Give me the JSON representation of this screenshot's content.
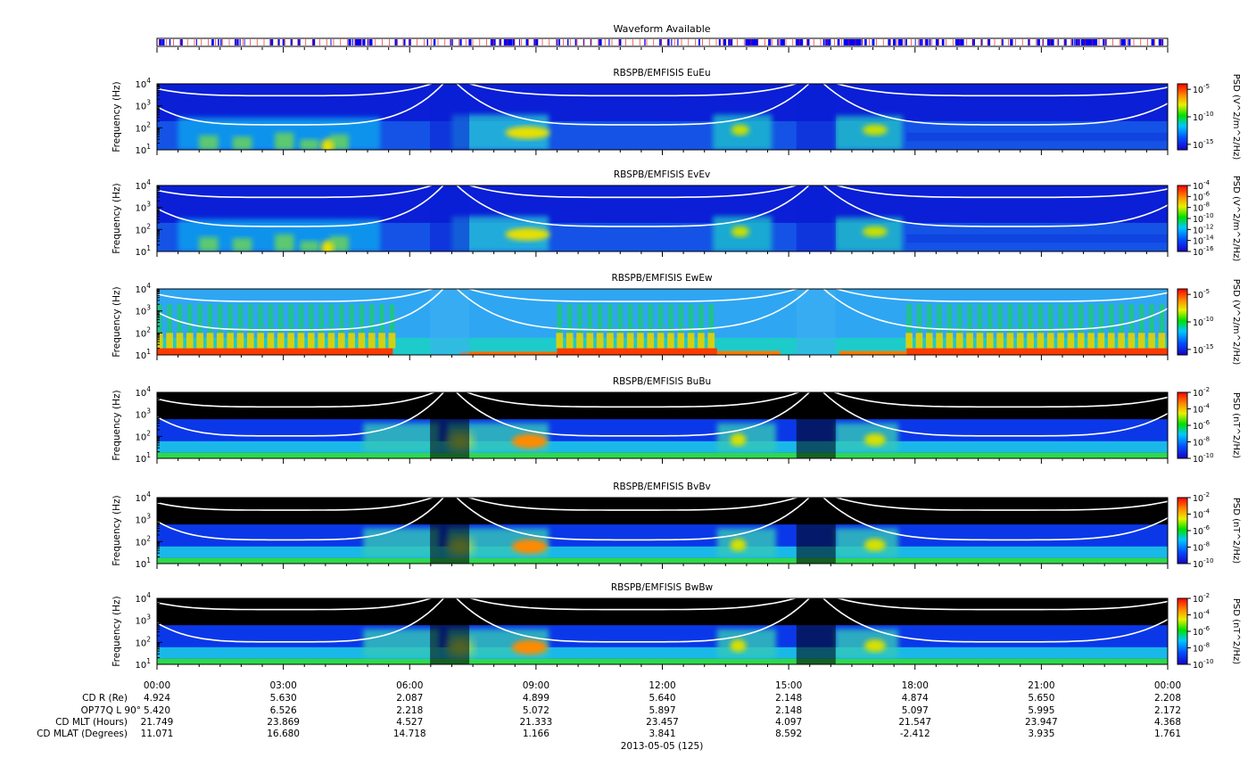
{
  "waveform": {
    "title": "Waveform Available",
    "fill_color": "#0000ff",
    "tick_color": "#ff0000"
  },
  "chart_data": [
    {
      "type": "heatmap",
      "title": "RBSPB/EMFISIS  EuEu",
      "ylabel": "Frequency (Hz)",
      "y_scale": "log",
      "ylim": [
        10,
        10000
      ],
      "y_ticks": [
        1,
        2,
        3,
        4
      ],
      "colorbar_label": "PSD (V^2/m^2/Hz)",
      "colorbar_scale": "log",
      "colorbar_range": [
        1e-16,
        0.0001
      ],
      "colorbar_ticks": [
        -5,
        -10,
        -15
      ],
      "colormap": "rainbow",
      "background": "#0a1fd6",
      "style": "E"
    },
    {
      "type": "heatmap",
      "title": "RBSPB/EMFISIS  EvEv",
      "ylabel": "Frequency (Hz)",
      "y_scale": "log",
      "ylim": [
        10,
        10000
      ],
      "y_ticks": [
        1,
        2,
        3,
        4
      ],
      "colorbar_label": "PSD (V^2/m^2/Hz)",
      "colorbar_scale": "log",
      "colorbar_range": [
        1e-16,
        0.0001
      ],
      "colorbar_ticks": [
        -4,
        -6,
        -8,
        -10,
        -12,
        -14,
        -16
      ],
      "colormap": "rainbow",
      "background": "#0a1fd6",
      "style": "E"
    },
    {
      "type": "heatmap",
      "title": "RBSPB/EMFISIS  EwEw",
      "ylabel": "Frequency (Hz)",
      "y_scale": "log",
      "ylim": [
        10,
        10000
      ],
      "y_ticks": [
        1,
        2,
        3,
        4
      ],
      "colorbar_label": "PSD (V^2/m^2/Hz)",
      "colorbar_scale": "log",
      "colorbar_range": [
        1e-16,
        0.0001
      ],
      "colorbar_ticks": [
        -5,
        -10,
        -15
      ],
      "colormap": "rainbow",
      "background": "#2fa6f2",
      "style": "Ew"
    },
    {
      "type": "heatmap",
      "title": "RBSPB/EMFISIS  BuBu",
      "ylabel": "Frequency (Hz)",
      "y_scale": "log",
      "ylim": [
        10,
        10000
      ],
      "y_ticks": [
        1,
        2,
        3,
        4
      ],
      "colorbar_label": "PSD (nT^2/Hz)",
      "colorbar_scale": "log",
      "colorbar_range": [
        1e-10,
        0.01
      ],
      "colorbar_ticks": [
        -2,
        -4,
        -6,
        -8,
        -10
      ],
      "colormap": "rainbow",
      "background": "#000000",
      "style": "B"
    },
    {
      "type": "heatmap",
      "title": "RBSPB/EMFISIS  BvBv",
      "ylabel": "Frequency (Hz)",
      "y_scale": "log",
      "ylim": [
        10,
        10000
      ],
      "y_ticks": [
        1,
        2,
        3,
        4
      ],
      "colorbar_label": "PSD (nT^2/Hz)",
      "colorbar_scale": "log",
      "colorbar_range": [
        1e-10,
        0.01
      ],
      "colorbar_ticks": [
        -2,
        -4,
        -6,
        -8,
        -10
      ],
      "colormap": "rainbow",
      "background": "#000000",
      "style": "B"
    },
    {
      "type": "heatmap",
      "title": "RBSPB/EMFISIS  BwBw",
      "ylabel": "Frequency (Hz)",
      "y_scale": "log",
      "ylim": [
        10,
        10000
      ],
      "y_ticks": [
        1,
        2,
        3,
        4
      ],
      "colorbar_label": "PSD (nT^2/Hz)",
      "colorbar_scale": "log",
      "colorbar_range": [
        1e-10,
        0.01
      ],
      "colorbar_ticks": [
        -2,
        -4,
        -6,
        -8,
        -10
      ],
      "colormap": "rainbow",
      "background": "#000000",
      "style": "B"
    }
  ],
  "time_axis": {
    "labels": [
      "00:00",
      "03:00",
      "06:00",
      "09:00",
      "12:00",
      "15:00",
      "18:00",
      "21:00",
      "00:00"
    ],
    "date_label": "2013-05-05 (125)"
  },
  "ephemeris": {
    "row_labels": [
      "CD R (Re)",
      "OP77Q L 90°",
      "CD MLT (Hours)",
      "CD MLAT (Degrees)"
    ],
    "columns": [
      [
        "4.924",
        "5.420",
        "21.749",
        "11.071"
      ],
      [
        "5.630",
        "6.526",
        "23.869",
        "16.680"
      ],
      [
        "2.087",
        "2.218",
        "4.527",
        "14.718"
      ],
      [
        "4.899",
        "5.072",
        "21.333",
        "1.166"
      ],
      [
        "5.640",
        "5.897",
        "23.457",
        "3.841"
      ],
      [
        "2.148",
        "2.148",
        "4.097",
        "8.592"
      ],
      [
        "4.874",
        "5.097",
        "21.547",
        "-2.412"
      ],
      [
        "5.650",
        "5.995",
        "23.947",
        "3.935"
      ],
      [
        "2.208",
        "2.172",
        "4.368",
        "1.761"
      ]
    ]
  }
}
